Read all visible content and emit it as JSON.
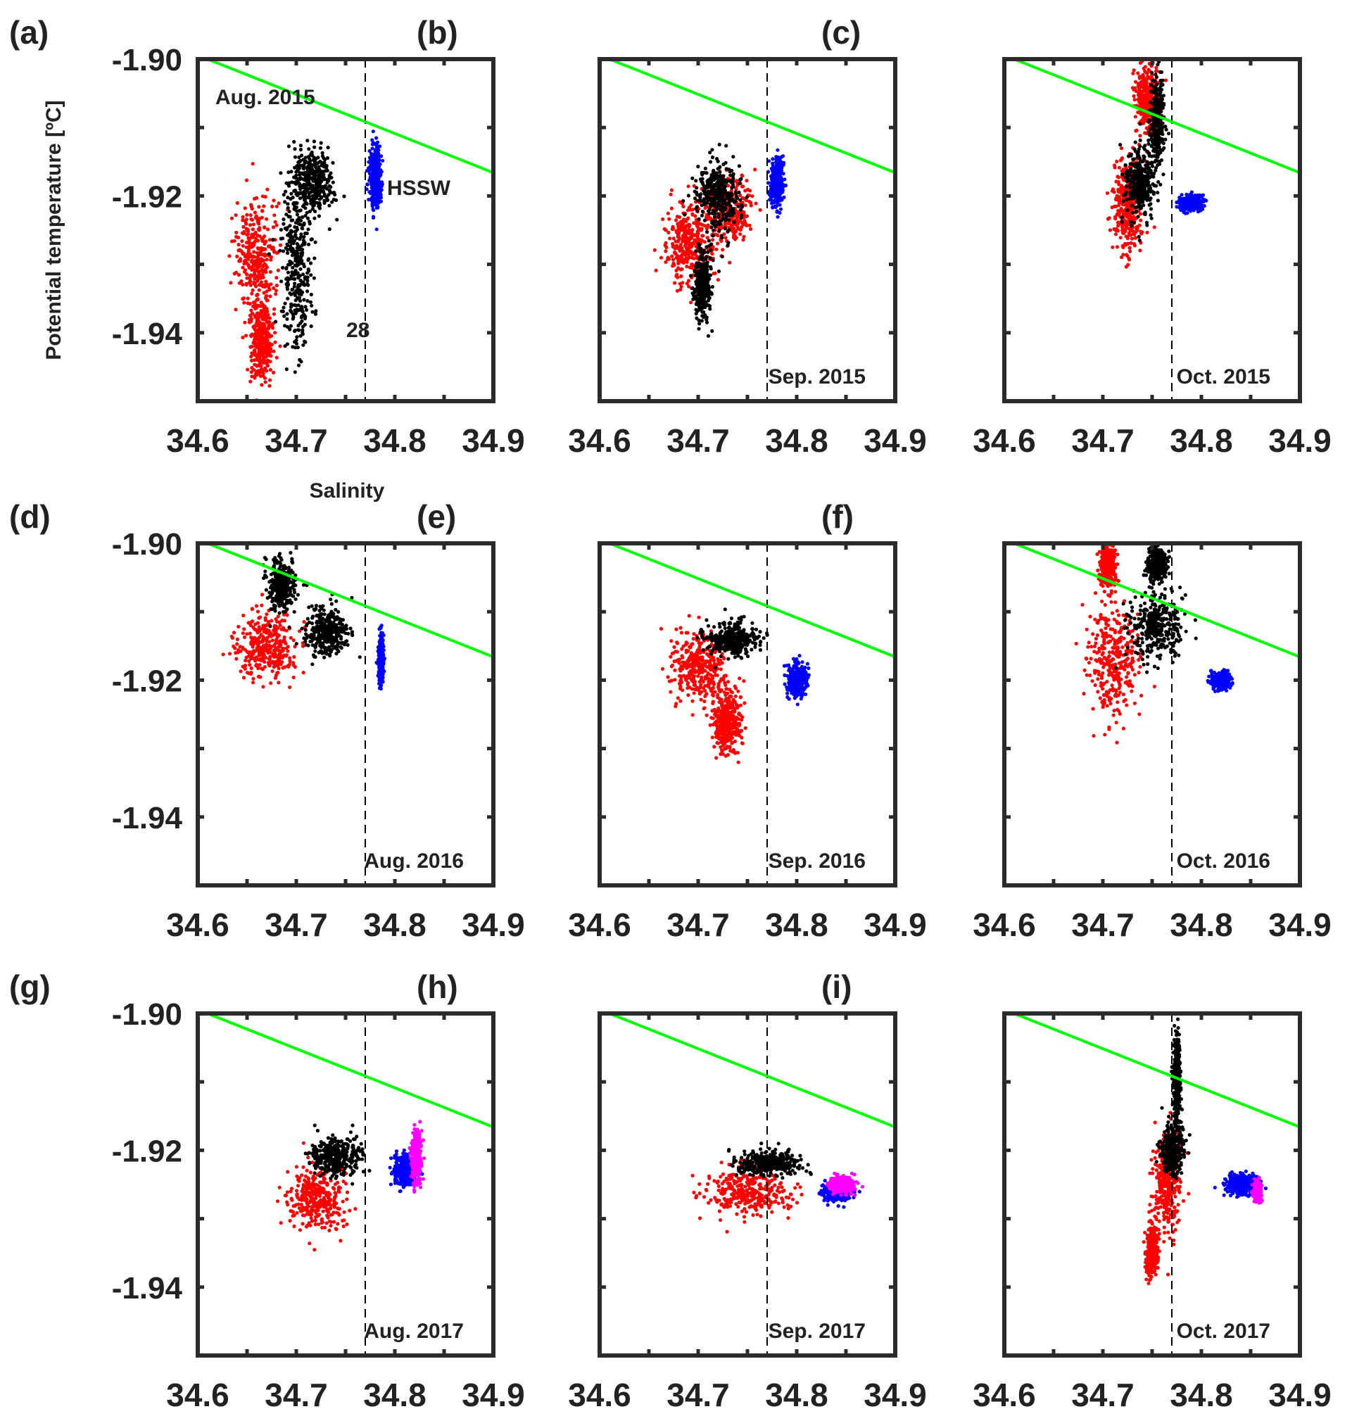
{
  "figure": {
    "ylabel": "Potential temperature [ºC]",
    "xlabel": "Salinity",
    "colors": {
      "red": "#ff0000",
      "black": "#000000",
      "blue": "#0000ff",
      "magenta": "#ff00ff",
      "freezing": "#00ff00",
      "frame": "#2b2b2b",
      "refline": "#000000"
    }
  },
  "chart_data": [
    {
      "type": "scatter",
      "panel": "(a)",
      "title": "Aug.  2015",
      "xlim": [
        34.6,
        34.9
      ],
      "ylim": [
        -1.95,
        -1.9
      ],
      "xticks": [
        "34.6",
        "34.7",
        "34.8",
        "34.9"
      ],
      "yticks": [
        "-1.90",
        "-1.92",
        "-1.94"
      ],
      "xlabel": "Salinity",
      "ylabel": "Potential temperature [ºC]",
      "freezing_line": {
        "x": [
          34.61,
          34.9
        ],
        "y": [
          -1.9,
          -1.9166
        ]
      },
      "reference_salinity": 34.77,
      "annotations": [
        "HSSW",
        "28"
      ],
      "series": [
        {
          "name": "red",
          "color": "#ff0000",
          "clusters": [
            {
              "x": 34.66,
              "y": -1.929,
              "sx": 0.017,
              "sy": 0.007
            },
            {
              "x": 34.665,
              "y": -1.941,
              "sx": 0.01,
              "sy": 0.005
            }
          ]
        },
        {
          "name": "black",
          "color": "#000000",
          "clusters": [
            {
              "x": 34.7,
              "y": -1.931,
              "sx": 0.012,
              "sy": 0.011
            },
            {
              "x": 34.715,
              "y": -1.918,
              "sx": 0.018,
              "sy": 0.004
            }
          ]
        },
        {
          "name": "blue",
          "color": "#0000ff",
          "clusters": [
            {
              "x": 34.78,
              "y": -1.917,
              "sx": 0.005,
              "sy": 0.004
            }
          ]
        }
      ]
    },
    {
      "type": "scatter",
      "panel": "(b)",
      "title": "Sep.  2015",
      "xlim": [
        34.6,
        34.9
      ],
      "ylim": [
        -1.95,
        -1.9
      ],
      "xticks": [
        "34.6",
        "34.7",
        "34.8",
        "34.9"
      ],
      "yticks": [],
      "freezing_line": {
        "x": [
          34.61,
          34.9
        ],
        "y": [
          -1.9,
          -1.9166
        ]
      },
      "reference_salinity": 34.77,
      "series": [
        {
          "name": "red",
          "color": "#ff0000",
          "clusters": [
            {
              "x": 34.69,
              "y": -1.927,
              "sx": 0.02,
              "sy": 0.005
            },
            {
              "x": 34.73,
              "y": -1.922,
              "sx": 0.02,
              "sy": 0.004
            }
          ]
        },
        {
          "name": "black",
          "color": "#000000",
          "clusters": [
            {
              "x": 34.72,
              "y": -1.92,
              "sx": 0.02,
              "sy": 0.004
            },
            {
              "x": 34.705,
              "y": -1.933,
              "sx": 0.007,
              "sy": 0.004
            }
          ]
        },
        {
          "name": "blue",
          "color": "#0000ff",
          "clusters": [
            {
              "x": 34.78,
              "y": -1.918,
              "sx": 0.006,
              "sy": 0.003
            }
          ]
        }
      ]
    },
    {
      "type": "scatter",
      "panel": "(c)",
      "title": "Oct.  2015",
      "xlim": [
        34.6,
        34.9
      ],
      "ylim": [
        -1.95,
        -1.9
      ],
      "xticks": [
        "34.6",
        "34.7",
        "34.8",
        "34.9"
      ],
      "yticks": [],
      "freezing_line": {
        "x": [
          34.61,
          34.9
        ],
        "y": [
          -1.9,
          -1.9166
        ]
      },
      "reference_salinity": 34.77,
      "series": [
        {
          "name": "red",
          "color": "#ff0000",
          "clusters": [
            {
              "x": 34.725,
              "y": -1.922,
              "sx": 0.012,
              "sy": 0.006
            },
            {
              "x": 34.745,
              "y": -1.906,
              "sx": 0.01,
              "sy": 0.004
            }
          ]
        },
        {
          "name": "black",
          "color": "#000000",
          "clusters": [
            {
              "x": 34.738,
              "y": -1.918,
              "sx": 0.012,
              "sy": 0.004
            },
            {
              "x": 34.755,
              "y": -1.909,
              "sx": 0.006,
              "sy": 0.005
            }
          ]
        },
        {
          "name": "blue",
          "color": "#0000ff",
          "clusters": [
            {
              "x": 34.79,
              "y": -1.921,
              "sx": 0.01,
              "sy": 0.001
            }
          ]
        }
      ]
    },
    {
      "type": "scatter",
      "panel": "(d)",
      "title": "Aug.  2016",
      "xlim": [
        34.6,
        34.9
      ],
      "ylim": [
        -1.95,
        -1.9
      ],
      "xticks": [
        "34.6",
        "34.7",
        "34.8",
        "34.9"
      ],
      "yticks": [
        "-1.90",
        "-1.92",
        "-1.94"
      ],
      "freezing_line": {
        "x": [
          34.61,
          34.9
        ],
        "y": [
          -1.9,
          -1.9166
        ]
      },
      "reference_salinity": 34.77,
      "series": [
        {
          "name": "red",
          "color": "#ff0000",
          "clusters": [
            {
              "x": 34.67,
              "y": -1.915,
              "sx": 0.025,
              "sy": 0.004
            }
          ]
        },
        {
          "name": "black",
          "color": "#000000",
          "clusters": [
            {
              "x": 34.685,
              "y": -1.906,
              "sx": 0.012,
              "sy": 0.003
            },
            {
              "x": 34.73,
              "y": -1.913,
              "sx": 0.018,
              "sy": 0.003
            }
          ]
        },
        {
          "name": "blue",
          "color": "#0000ff",
          "clusters": [
            {
              "x": 34.786,
              "y": -1.917,
              "sx": 0.002,
              "sy": 0.003
            }
          ]
        }
      ]
    },
    {
      "type": "scatter",
      "panel": "(e)",
      "title": "Sep.  2016",
      "xlim": [
        34.6,
        34.9
      ],
      "ylim": [
        -1.95,
        -1.9
      ],
      "xticks": [
        "34.6",
        "34.7",
        "34.8",
        "34.9"
      ],
      "yticks": [],
      "freezing_line": {
        "x": [
          34.61,
          34.9
        ],
        "y": [
          -1.9,
          -1.9166
        ]
      },
      "reference_salinity": 34.77,
      "series": [
        {
          "name": "red",
          "color": "#ff0000",
          "clusters": [
            {
              "x": 34.7,
              "y": -1.918,
              "sx": 0.025,
              "sy": 0.004
            },
            {
              "x": 34.73,
              "y": -1.926,
              "sx": 0.012,
              "sy": 0.004
            }
          ]
        },
        {
          "name": "black",
          "color": "#000000",
          "clusters": [
            {
              "x": 34.735,
              "y": -1.914,
              "sx": 0.022,
              "sy": 0.002
            }
          ]
        },
        {
          "name": "blue",
          "color": "#0000ff",
          "clusters": [
            {
              "x": 34.8,
              "y": -1.92,
              "sx": 0.008,
              "sy": 0.002
            }
          ]
        }
      ]
    },
    {
      "type": "scatter",
      "panel": "(f)",
      "title": "Oct.  2016",
      "xlim": [
        34.6,
        34.9
      ],
      "ylim": [
        -1.95,
        -1.9
      ],
      "xticks": [
        "34.6",
        "34.7",
        "34.8",
        "34.9"
      ],
      "yticks": [],
      "freezing_line": {
        "x": [
          34.61,
          34.9
        ],
        "y": [
          -1.9,
          -1.9166
        ]
      },
      "reference_salinity": 34.77,
      "series": [
        {
          "name": "red",
          "color": "#ff0000",
          "clusters": [
            {
              "x": 34.71,
              "y": -1.917,
              "sx": 0.02,
              "sy": 0.007
            },
            {
              "x": 34.705,
              "y": -1.903,
              "sx": 0.006,
              "sy": 0.003
            }
          ]
        },
        {
          "name": "black",
          "color": "#000000",
          "clusters": [
            {
              "x": 34.755,
              "y": -1.912,
              "sx": 0.022,
              "sy": 0.004
            },
            {
              "x": 34.755,
              "y": -1.903,
              "sx": 0.008,
              "sy": 0.002
            }
          ]
        },
        {
          "name": "blue",
          "color": "#0000ff",
          "clusters": [
            {
              "x": 34.82,
              "y": -1.92,
              "sx": 0.008,
              "sy": 0.001
            }
          ]
        }
      ]
    },
    {
      "type": "scatter",
      "panel": "(g)",
      "title": "Aug.  2017",
      "xlim": [
        34.6,
        34.9
      ],
      "ylim": [
        -1.95,
        -1.9
      ],
      "xticks": [
        "34.6",
        "34.7",
        "34.8",
        "34.9"
      ],
      "yticks": [
        "-1.90",
        "-1.92",
        "-1.94"
      ],
      "freezing_line": {
        "x": [
          34.61,
          34.9
        ],
        "y": [
          -1.9,
          -1.9166
        ]
      },
      "reference_salinity": 34.77,
      "series": [
        {
          "name": "red",
          "color": "#ff0000",
          "clusters": [
            {
              "x": 34.72,
              "y": -1.927,
              "sx": 0.025,
              "sy": 0.004
            }
          ]
        },
        {
          "name": "black",
          "color": "#000000",
          "clusters": [
            {
              "x": 34.74,
              "y": -1.921,
              "sx": 0.022,
              "sy": 0.0025
            }
          ]
        },
        {
          "name": "blue",
          "color": "#0000ff",
          "clusters": [
            {
              "x": 34.81,
              "y": -1.923,
              "sx": 0.01,
              "sy": 0.002
            }
          ]
        },
        {
          "name": "magenta",
          "color": "#ff00ff",
          "clusters": [
            {
              "x": 34.822,
              "y": -1.921,
              "sx": 0.004,
              "sy": 0.003
            }
          ]
        }
      ]
    },
    {
      "type": "scatter",
      "panel": "(h)",
      "title": "Sep.  2017",
      "xlim": [
        34.6,
        34.9
      ],
      "ylim": [
        -1.95,
        -1.9
      ],
      "xticks": [
        "34.6",
        "34.7",
        "34.8",
        "34.9"
      ],
      "yticks": [],
      "freezing_line": {
        "x": [
          34.61,
          34.9
        ],
        "y": [
          -1.9,
          -1.9166
        ]
      },
      "reference_salinity": 34.77,
      "series": [
        {
          "name": "red",
          "color": "#ff0000",
          "clusters": [
            {
              "x": 34.75,
              "y": -1.926,
              "sx": 0.035,
              "sy": 0.003
            }
          ]
        },
        {
          "name": "black",
          "color": "#000000",
          "clusters": [
            {
              "x": 34.77,
              "y": -1.922,
              "sx": 0.025,
              "sy": 0.0015
            }
          ]
        },
        {
          "name": "blue",
          "color": "#0000ff",
          "clusters": [
            {
              "x": 34.84,
              "y": -1.926,
              "sx": 0.012,
              "sy": 0.0012
            }
          ]
        },
        {
          "name": "magenta",
          "color": "#ff00ff",
          "clusters": [
            {
              "x": 34.845,
              "y": -1.925,
              "sx": 0.01,
              "sy": 0.001
            }
          ]
        }
      ]
    },
    {
      "type": "scatter",
      "panel": "(i)",
      "title": "Oct.  2017",
      "xlim": [
        34.6,
        34.9
      ],
      "ylim": [
        -1.95,
        -1.9
      ],
      "xticks": [
        "34.6",
        "34.7",
        "34.8",
        "34.9"
      ],
      "yticks": [],
      "freezing_line": {
        "x": [
          34.61,
          34.9
        ],
        "y": [
          -1.9,
          -1.9166
        ]
      },
      "reference_salinity": 34.77,
      "series": [
        {
          "name": "red",
          "color": "#ff0000",
          "clusters": [
            {
              "x": 34.765,
              "y": -1.925,
              "sx": 0.012,
              "sy": 0.006
            },
            {
              "x": 34.75,
              "y": -1.935,
              "sx": 0.005,
              "sy": 0.003
            }
          ]
        },
        {
          "name": "black",
          "color": "#000000",
          "clusters": [
            {
              "x": 34.77,
              "y": -1.92,
              "sx": 0.01,
              "sy": 0.003
            },
            {
              "x": 34.775,
              "y": -1.909,
              "sx": 0.003,
              "sy": 0.005
            }
          ]
        },
        {
          "name": "blue",
          "color": "#0000ff",
          "clusters": [
            {
              "x": 34.84,
              "y": -1.925,
              "sx": 0.012,
              "sy": 0.0012
            }
          ]
        },
        {
          "name": "magenta",
          "color": "#ff00ff",
          "clusters": [
            {
              "x": 34.857,
              "y": -1.926,
              "sx": 0.003,
              "sy": 0.001
            }
          ]
        }
      ]
    }
  ]
}
